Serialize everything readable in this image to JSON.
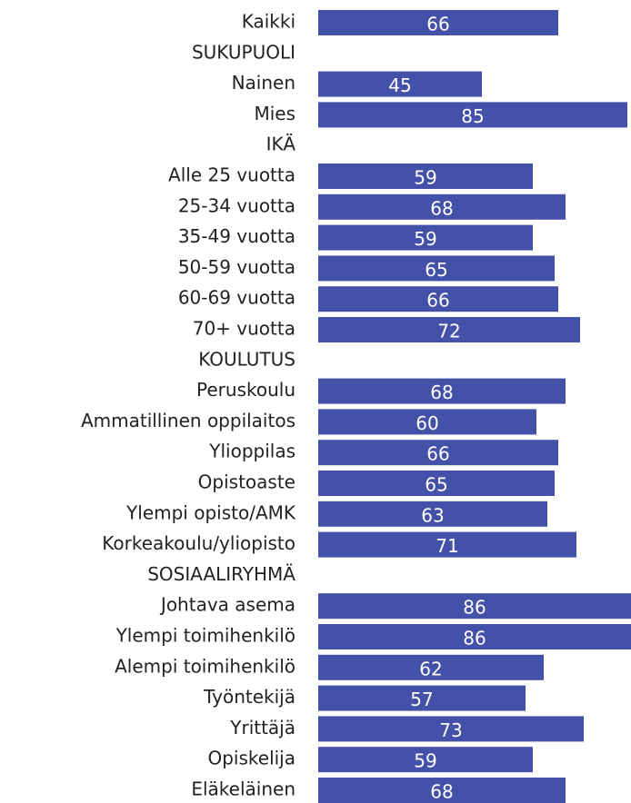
{
  "chart_data": {
    "type": "bar",
    "orientation": "horizontal",
    "color": "#4451a9",
    "categories": [
      "Kaikki",
      "SUKUPUOLI",
      "Nainen",
      "Mies",
      "IKÄ",
      "Alle 25 vuotta",
      "25-34 vuotta",
      "35-49 vuotta",
      "50-59 vuotta",
      "60-69 vuotta",
      "70+ vuotta",
      "KOULUTUS",
      "Peruskoulu",
      "Ammatillinen oppilaitos",
      "Ylioppilas",
      "Opistoaste",
      "Ylempi opisto/AMK",
      "Korkeakoulu/yliopisto",
      "SOSIAALIRYHMÄ",
      "Johtava asema",
      "Ylempi toimihenkilö",
      "Alempi toimihenkilö",
      "Työntekijä",
      "Yrittäjä",
      "Opiskelija",
      "Eläkeläinen"
    ],
    "values": [
      66,
      null,
      45,
      85,
      null,
      59,
      68,
      59,
      65,
      66,
      72,
      null,
      68,
      60,
      66,
      65,
      63,
      71,
      null,
      86,
      86,
      62,
      57,
      73,
      59,
      68
    ],
    "xlim": [
      0,
      86
    ]
  }
}
